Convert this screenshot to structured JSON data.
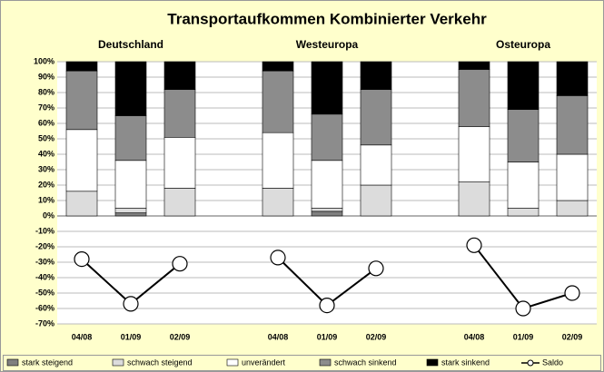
{
  "chart_data": {
    "type": "bar",
    "stacked": true,
    "title": "Transportaufkommen Kombinierter Verkehr",
    "groups": [
      "Deutschland",
      "Westeuropa",
      "Osteuropa"
    ],
    "categories": [
      "04/08",
      "01/09",
      "02/09",
      null,
      "04/08",
      "01/09",
      "02/09",
      null,
      "04/08",
      "01/09",
      "02/09"
    ],
    "series": [
      {
        "name": "stark steigend",
        "color": "#7f7f7f",
        "values": [
          0,
          2,
          0,
          null,
          0,
          3,
          0,
          null,
          0,
          0,
          0
        ]
      },
      {
        "name": "schwach steigend",
        "color": "#dcdcdc",
        "values": [
          16,
          3,
          18,
          null,
          18,
          2,
          20,
          null,
          22,
          5,
          10
        ]
      },
      {
        "name": "unverändert",
        "color": "#ffffff",
        "values": [
          40,
          31,
          33,
          null,
          36,
          31,
          26,
          null,
          36,
          30,
          30
        ]
      },
      {
        "name": "schwach sinkend",
        "color": "#8c8c8c",
        "values": [
          38,
          29,
          31,
          null,
          40,
          30,
          36,
          null,
          37,
          34,
          38
        ]
      },
      {
        "name": "stark sinkend",
        "color": "#000000",
        "values": [
          6,
          35,
          18,
          null,
          6,
          34,
          18,
          null,
          5,
          31,
          22
        ]
      },
      {
        "name": "Saldo",
        "type": "line",
        "color": "#000000",
        "values": [
          -28,
          -57,
          -31,
          null,
          -27,
          -58,
          -34,
          null,
          -19,
          -60,
          -50
        ]
      }
    ],
    "ylim": [
      -70,
      100
    ],
    "yticks": [
      {
        "value": 100,
        "label": "100%"
      },
      {
        "value": 90,
        "label": "90%"
      },
      {
        "value": 80,
        "label": "80%"
      },
      {
        "value": 70,
        "label": "70%"
      },
      {
        "value": 60,
        "label": "60%"
      },
      {
        "value": 50,
        "label": "50%"
      },
      {
        "value": 40,
        "label": "40%"
      },
      {
        "value": 30,
        "label": "30%"
      },
      {
        "value": 20,
        "label": "20%"
      },
      {
        "value": 10,
        "label": "10%"
      },
      {
        "value": 0,
        "label": "0%"
      },
      {
        "value": -10,
        "label": "-10%"
      },
      {
        "value": -20,
        "label": "-20%"
      },
      {
        "value": -30,
        "label": "-30%"
      },
      {
        "value": -40,
        "label": "-40%"
      },
      {
        "value": -50,
        "label": "-50%"
      },
      {
        "value": -60,
        "label": "-60%"
      },
      {
        "value": -70,
        "label": "-70%"
      }
    ],
    "grid": true,
    "legend": "bottom"
  }
}
